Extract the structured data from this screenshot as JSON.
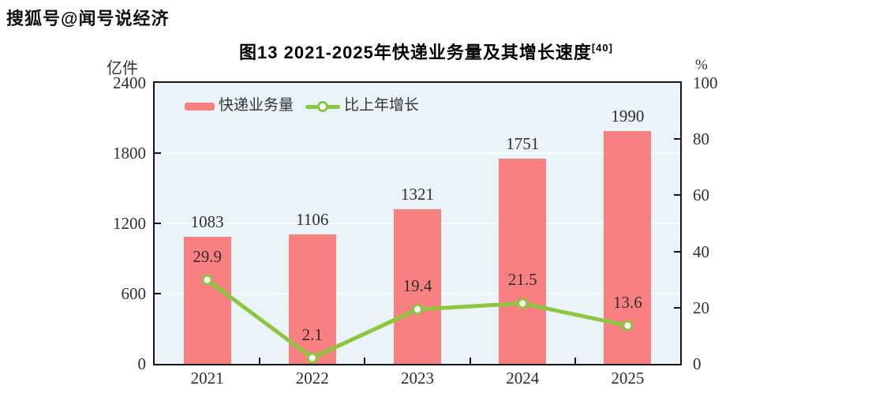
{
  "watermark": "搜狐号@闻号说经济",
  "chart_data": {
    "type": "combo-bar-line",
    "title": "图13  2021-2025年快递业务量及其增长速度",
    "title_superscript": "[40]",
    "categories": [
      "2021",
      "2022",
      "2023",
      "2024",
      "2025"
    ],
    "series": [
      {
        "name": "快递业务量",
        "type": "bar",
        "unit": "亿件",
        "axis": "left",
        "values": [
          1083,
          1106,
          1321,
          1751,
          1990
        ],
        "labels": [
          "1083",
          "1106",
          "1321",
          "1751",
          "1990"
        ],
        "color": "#f98080"
      },
      {
        "name": "比上年增长",
        "type": "line",
        "unit": "%",
        "axis": "right",
        "values": [
          29.9,
          2.1,
          19.4,
          21.5,
          13.6
        ],
        "labels": [
          "29.9",
          "2.1",
          "19.4",
          "21.5",
          "13.6"
        ],
        "color": "#8cc63f",
        "marker_fill": "#ffffff"
      }
    ],
    "left_axis": {
      "label": "亿件",
      "min": 0,
      "max": 2400,
      "ticks": [
        2400,
        1800,
        1200,
        600,
        0
      ]
    },
    "right_axis": {
      "label": "%",
      "min": 0,
      "max": 100,
      "ticks": [
        100,
        80,
        60,
        40,
        20,
        0
      ]
    },
    "gridline_values": [
      1800,
      1200,
      600
    ],
    "legend_position": "top-inside",
    "colors": {
      "plot_background": "#e9f3f8",
      "gridline": "#fbfdfe",
      "frame": "#151515",
      "text": "#2e2e2e"
    }
  }
}
